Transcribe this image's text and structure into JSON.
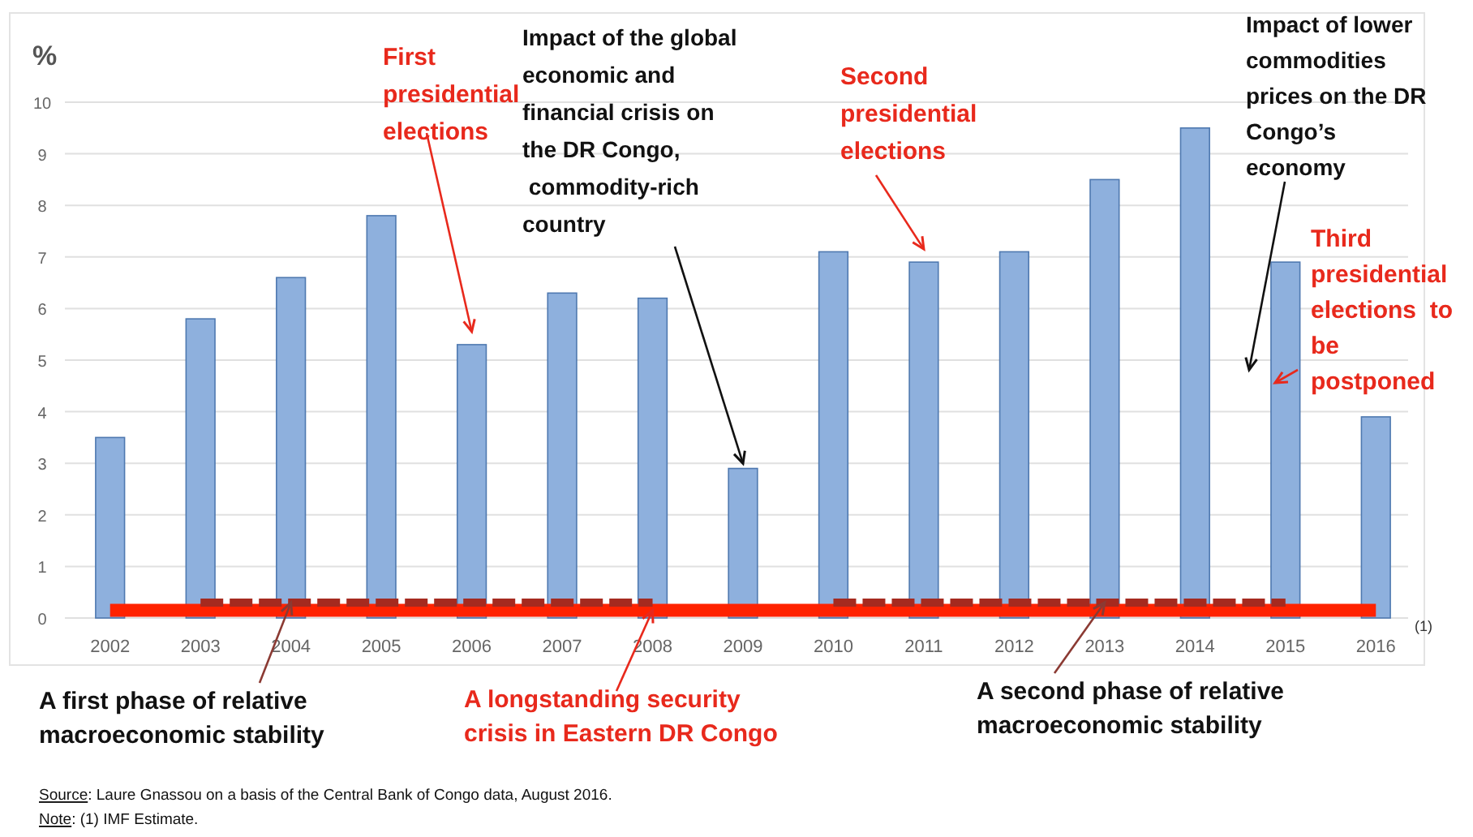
{
  "chart_data": {
    "type": "bar",
    "ylabel": "%",
    "categories": [
      "2002",
      "2003",
      "2004",
      "2005",
      "2006",
      "2007",
      "2008",
      "2009",
      "2010",
      "2011",
      "2012",
      "2013",
      "2014",
      "2015",
      "2016"
    ],
    "series": [
      {
        "color": "#8eb0dd",
        "values": [
          3.5,
          5.8,
          6.6,
          7.8,
          5.3,
          6.3,
          6.2,
          2.9,
          7.1,
          6.9,
          7.1,
          8.5,
          9.5,
          6.9,
          3.9
        ]
      },
      {
        "type": "line",
        "color": "#ff2200",
        "line_style": "solid",
        "values": [
          0.15,
          0.15,
          0.15,
          0.15,
          0.15,
          0.15,
          0.15,
          0.15,
          0.15,
          0.15,
          0.15,
          0.15,
          0.15,
          0.15,
          0.15
        ]
      },
      {
        "type": "line",
        "color": "#a52a1f",
        "line_style": "dashed",
        "values": [
          null,
          0.3,
          0.3,
          0.3,
          0.3,
          0.3,
          0.3,
          null,
          null,
          null,
          null,
          null,
          null,
          null,
          null
        ]
      },
      {
        "type": "line",
        "color": "#a52a1f",
        "line_style": "dashed",
        "values": [
          null,
          null,
          null,
          null,
          null,
          null,
          null,
          null,
          0.3,
          0.3,
          0.3,
          0.3,
          0.3,
          0.3,
          null
        ]
      }
    ],
    "ylim": [
      0,
      10
    ],
    "yticks": [
      0,
      1,
      2,
      3,
      4,
      5,
      6,
      7,
      8,
      9,
      10
    ],
    "grid": "y",
    "annotations": [
      {
        "text": "First\npresidential\nelections",
        "x": "2006",
        "y": 5.3
      },
      {
        "text": "Impact of the global\neconomic and\nfinancial crisis on\nthe DR Congo,\n commodity-rich\ncountry",
        "x": "2009",
        "y": 2.9
      },
      {
        "text": "Second\npresidential\nelections",
        "x": "2011",
        "y": 6.9
      },
      "Impact of lower\ncommodities\nprices on the DR\nCongo’s\neconomy",
      "Third\npresidential\nelections  to\nbe\npostponed",
      {
        "text": "A first phase of relative\nmacroeconomic stability",
        "x": "2004",
        "y": 0.3
      },
      {
        "text": "A longstanding security\ncrisis in Eastern DR Congo",
        "x": "2008",
        "y": 0.15
      },
      {
        "text": "A second phase of relative\nmacroeconomic stability",
        "x": "2013",
        "y": 0.3
      },
      "(1)",
      "Source: Laure Gnassou on a basis of the Central Bank of Congo data, August 2016.",
      "Note: (1) IMF Estimate."
    ]
  }
}
